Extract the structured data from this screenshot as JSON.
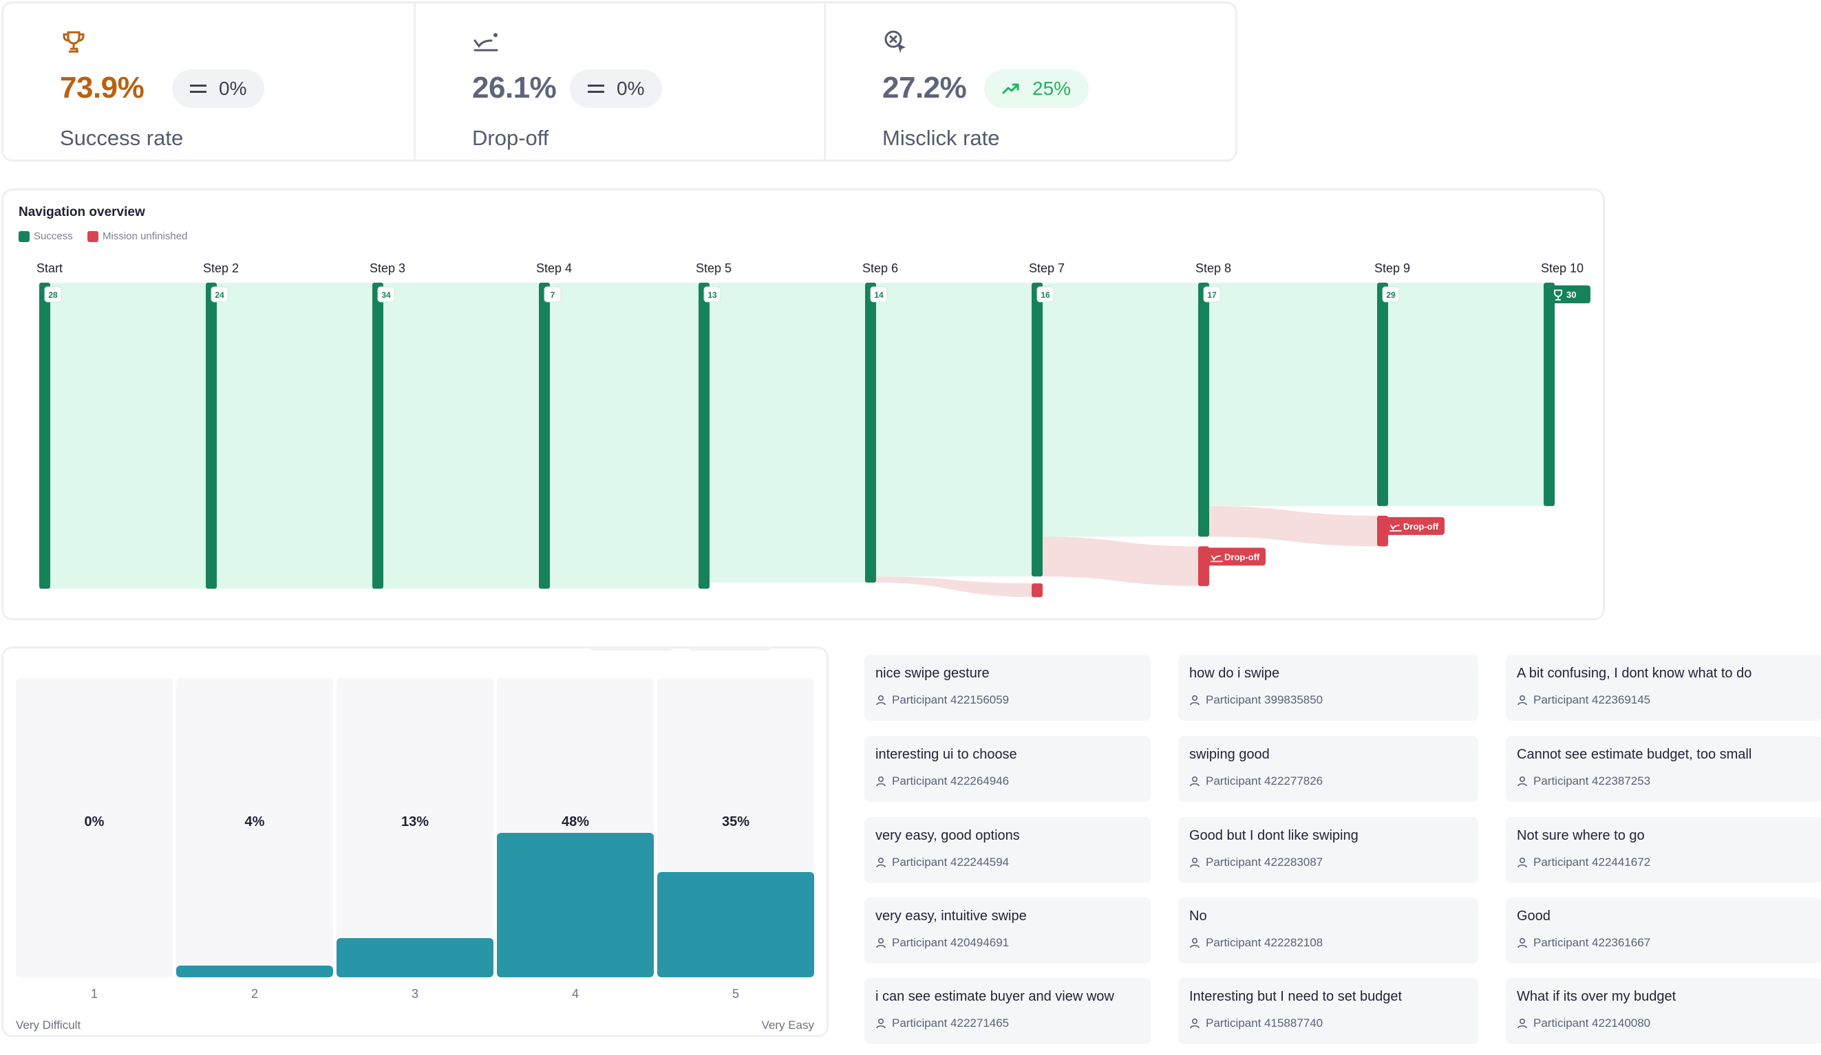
{
  "metrics": [
    {
      "icon": "trophy-icon",
      "value": "73.9%",
      "value_color": "#b8620f",
      "delta": "0%",
      "delta_icon": "equals-icon",
      "delta_tone": "neutral",
      "label": "Success rate"
    },
    {
      "icon": "drop-off-icon",
      "value": "26.1%",
      "value_color": "#5e6479",
      "delta": "0%",
      "delta_icon": "equals-icon",
      "delta_tone": "neutral",
      "label": "Drop-off"
    },
    {
      "icon": "misclick-icon",
      "value": "27.2%",
      "value_color": "#5e6479",
      "delta": "25%",
      "delta_icon": "trend-up-icon",
      "delta_tone": "positive",
      "label": "Misclick rate"
    }
  ],
  "navigation": {
    "title": "Navigation overview",
    "legend": [
      {
        "label": "Success",
        "color": "#16825a"
      },
      {
        "label": "Mission unfinished",
        "color": "#d8434f"
      }
    ],
    "steps": [
      {
        "label": "Start",
        "count": "28"
      },
      {
        "label": "Step 2",
        "count": "24"
      },
      {
        "label": "Step 3",
        "count": "34"
      },
      {
        "label": "Step 4",
        "count": "7"
      },
      {
        "label": "Step 5",
        "count": "13"
      },
      {
        "label": "Step 6",
        "count": "14"
      },
      {
        "label": "Step 7",
        "count": "16"
      },
      {
        "label": "Step 8",
        "count": "17"
      },
      {
        "label": "Step 9",
        "count": "29"
      },
      {
        "label": "Step 10",
        "count": "30",
        "icon": "trophy-icon"
      }
    ],
    "success_share": [
      1,
      1,
      1,
      1,
      1,
      0.98,
      0.96,
      0.83,
      0.73,
      0.73
    ],
    "dropoffs": [
      {
        "from_step": 6,
        "label": ""
      },
      {
        "from_step": 7,
        "label": "Drop-off"
      },
      {
        "from_step": 8,
        "label": "Drop-off"
      }
    ],
    "colors": {
      "success": "#16825a",
      "flow": "#dff8ec",
      "dropoff": "#d8434f",
      "dropoff_flow": "#f6dede"
    }
  },
  "rating": {
    "bars": [
      {
        "tick": "1",
        "percent": 0,
        "label": "0%"
      },
      {
        "tick": "2",
        "percent": 4,
        "label": "4%"
      },
      {
        "tick": "3",
        "percent": 13,
        "label": "13%"
      },
      {
        "tick": "4",
        "percent": 48,
        "label": "48%"
      },
      {
        "tick": "5",
        "percent": 35,
        "label": "35%"
      }
    ],
    "min_label": "Very Difficult",
    "max_label": "Very Easy",
    "bar_color": "#2896a6"
  },
  "comments": [
    [
      {
        "text": "nice swipe gesture",
        "participant": "Participant 422156059"
      },
      {
        "text": "interesting ui to choose",
        "participant": "Participant 422264946"
      },
      {
        "text": "very easy, good options",
        "participant": "Participant 422244594"
      },
      {
        "text": "very easy, intuitive swipe",
        "participant": "Participant 420494691"
      },
      {
        "text": "i can see estimate buyer and view wow",
        "participant": "Participant 422271465"
      }
    ],
    [
      {
        "text": "how do i swipe",
        "participant": "Participant 399835850"
      },
      {
        "text": "swiping good",
        "participant": "Participant 422277826"
      },
      {
        "text": "Good but I dont like swiping",
        "participant": "Participant 422283087"
      },
      {
        "text": "No",
        "participant": "Participant 422282108"
      },
      {
        "text": "Interesting but I need to set budget",
        "participant": "Participant 415887740"
      }
    ],
    [
      {
        "text": "A bit confusing, I dont know what to do",
        "participant": "Participant 422369145"
      },
      {
        "text": "Cannot see estimate budget, too small",
        "participant": "Participant 422387253"
      },
      {
        "text": "Not sure where to go",
        "participant": "Participant 422441672"
      },
      {
        "text": "Good",
        "participant": "Participant 422361667"
      },
      {
        "text": "What if its over my budget",
        "participant": "Participant 422140080"
      }
    ]
  ]
}
